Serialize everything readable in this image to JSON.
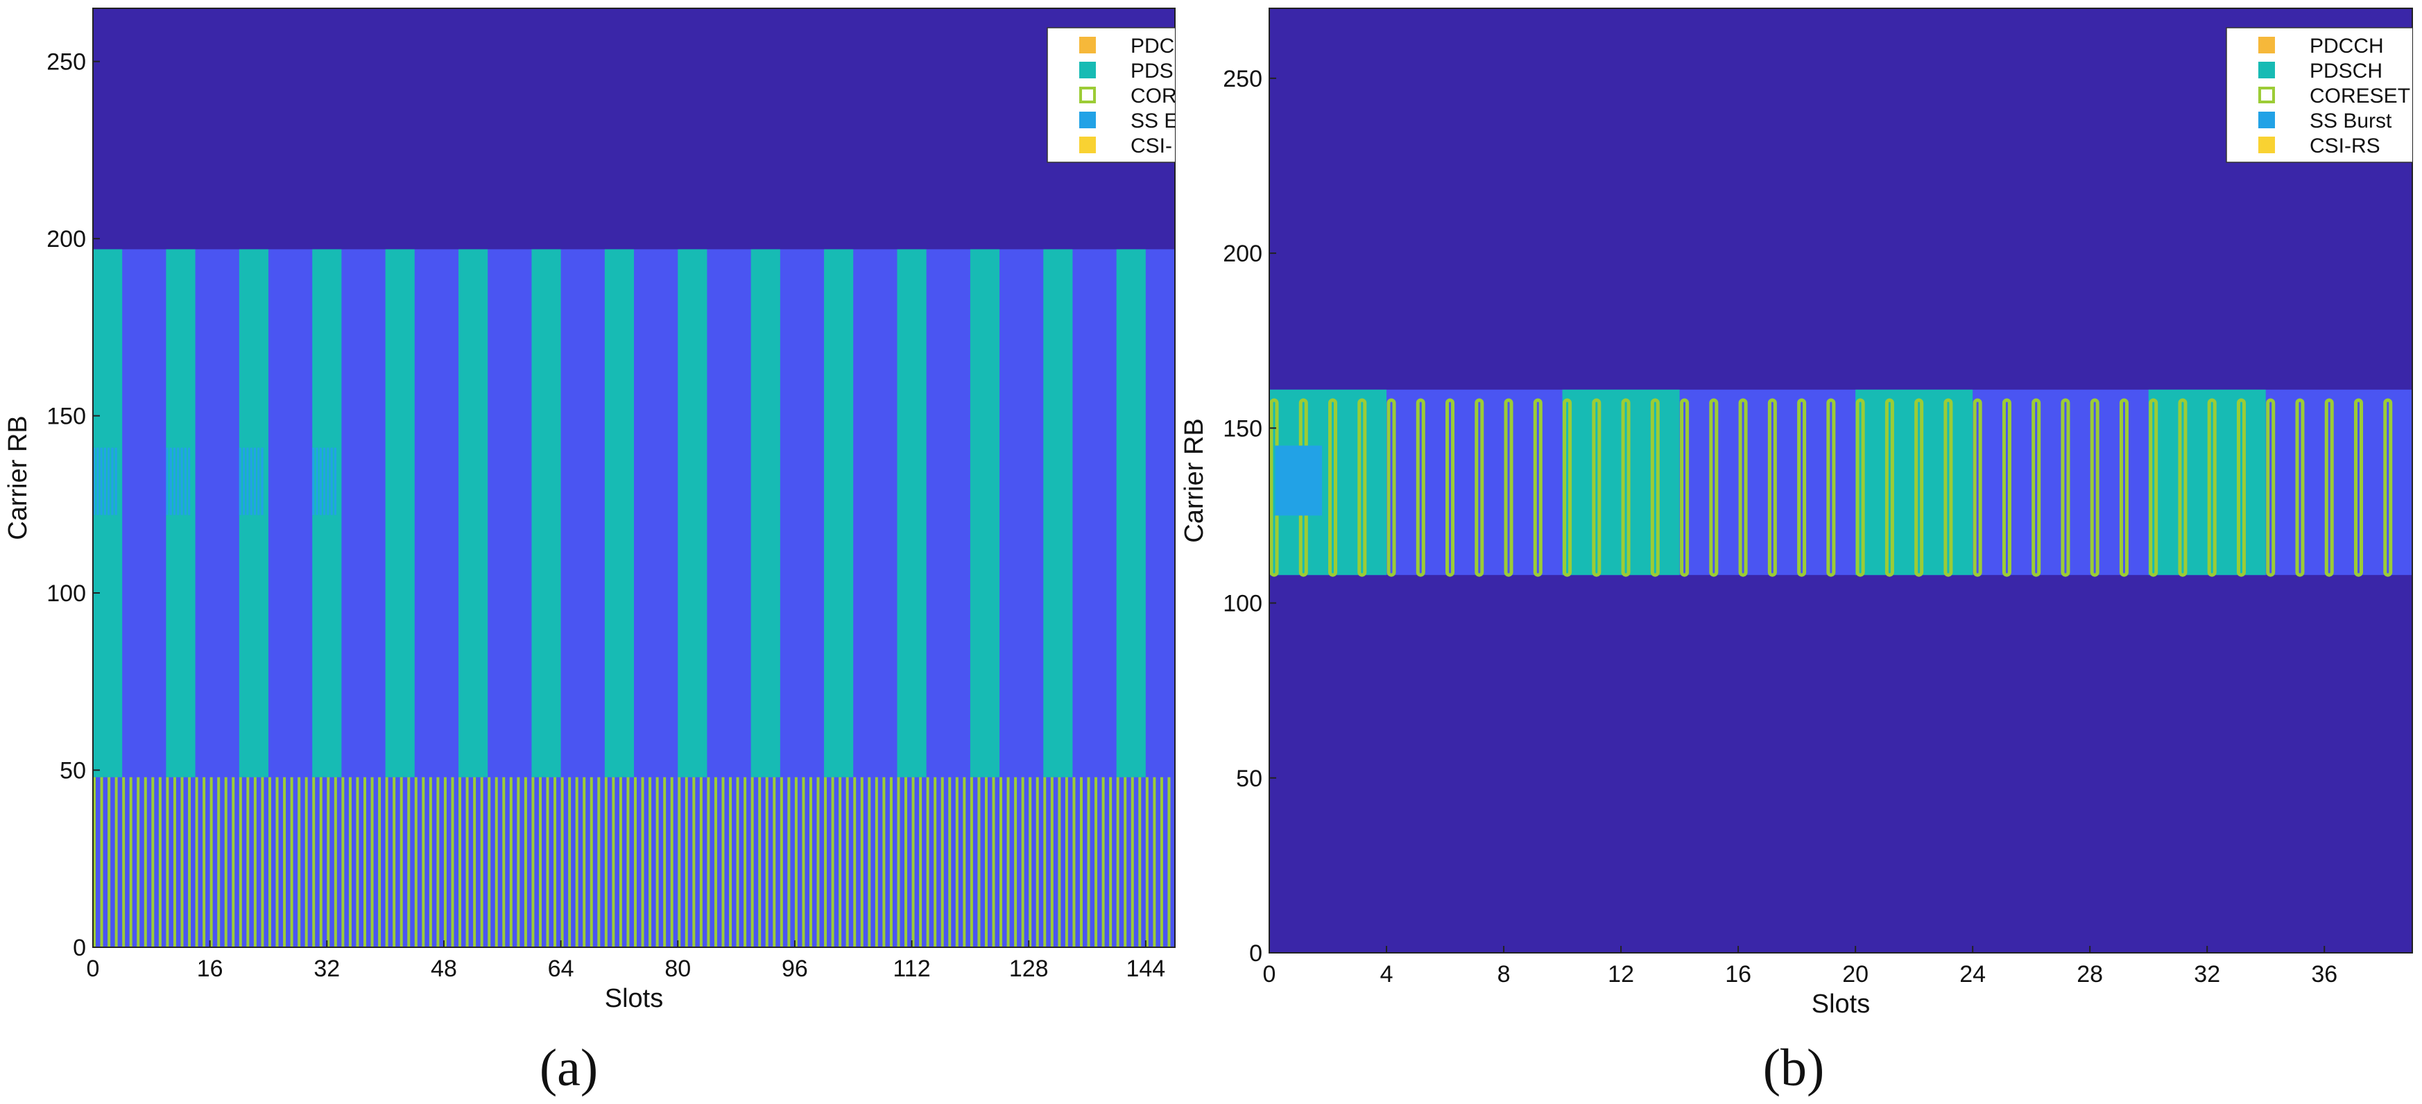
{
  "colors": {
    "background": "#3a26a8",
    "carrier": "#4a55f2",
    "pdsch": "#17bbb4",
    "pdcch": "#f6b83a",
    "coreset": "#9ccc36",
    "ss_burst": "#22a2e6",
    "csi_rs": "#f9d232"
  },
  "chart_data": [
    {
      "type": "heatmap",
      "caption": "(a)",
      "xlabel": "Slots",
      "ylabel": "Carrier RB",
      "xlim": [
        0,
        148
      ],
      "ylim": [
        0,
        265
      ],
      "xticks": [
        0,
        16,
        32,
        48,
        64,
        80,
        96,
        112,
        128,
        144
      ],
      "yticks": [
        0,
        50,
        100,
        150,
        200,
        250
      ],
      "grid": false,
      "legend": {
        "placement": "top-right",
        "entries": [
          {
            "label": "PDC",
            "marker": "filled",
            "color": "#f6b83a"
          },
          {
            "label": "PDS",
            "marker": "filled",
            "color": "#17bbb4"
          },
          {
            "label": "COR",
            "marker": "hollow",
            "color": "#9ccc36"
          },
          {
            "label": "SS E",
            "marker": "filled",
            "color": "#22a2e6"
          },
          {
            "label": "CSI-",
            "marker": "filled",
            "color": "#f9d232"
          }
        ]
      },
      "carrier_rb_range": [
        0,
        197
      ],
      "pdsch": {
        "rb_range": [
          48,
          197
        ],
        "period_slots": 10,
        "slots_per_period": 4,
        "first_slot": 0
      },
      "coreset": {
        "rb_range": [
          0,
          48
        ],
        "period_slots": 1,
        "symbols_per_slot": 2
      },
      "ss_burst": {
        "rb_range": [
          122,
          141
        ],
        "slot_groups": [
          [
            0,
            3.5
          ],
          [
            10,
            13.5
          ],
          [
            20,
            23.5
          ],
          [
            30,
            33.5
          ]
        ]
      }
    },
    {
      "type": "heatmap",
      "caption": "(b)",
      "xlabel": "Slots",
      "ylabel": "Carrier RB",
      "xlim": [
        0,
        39
      ],
      "ylim": [
        0,
        270
      ],
      "xticks": [
        0,
        4,
        8,
        12,
        16,
        20,
        24,
        28,
        32,
        36
      ],
      "yticks": [
        0,
        50,
        100,
        150,
        200,
        250
      ],
      "grid": false,
      "legend": {
        "placement": "top-right",
        "entries": [
          {
            "label": "PDCCH",
            "marker": "filled",
            "color": "#f6b83a"
          },
          {
            "label": "PDSCH",
            "marker": "filled",
            "color": "#17bbb4"
          },
          {
            "label": "CORESET",
            "marker": "hollow",
            "color": "#9ccc36"
          },
          {
            "label": "SS Burst",
            "marker": "filled",
            "color": "#22a2e6"
          },
          {
            "label": "CSI-RS",
            "marker": "filled",
            "color": "#f9d232"
          }
        ]
      },
      "carrier_rb_range": [
        108,
        161
      ],
      "pdsch": {
        "rb_range": [
          108,
          161
        ],
        "period_slots": 10,
        "slots_per_period": 4,
        "first_slot": 0
      },
      "coreset": {
        "rb_range": [
          108,
          158
        ],
        "period_slots": 1,
        "symbols_per_slot": 2
      },
      "ss_burst": {
        "rb_range": [
          125,
          145
        ],
        "slot_groups": [
          [
            0.2,
            1.8
          ]
        ]
      }
    }
  ]
}
